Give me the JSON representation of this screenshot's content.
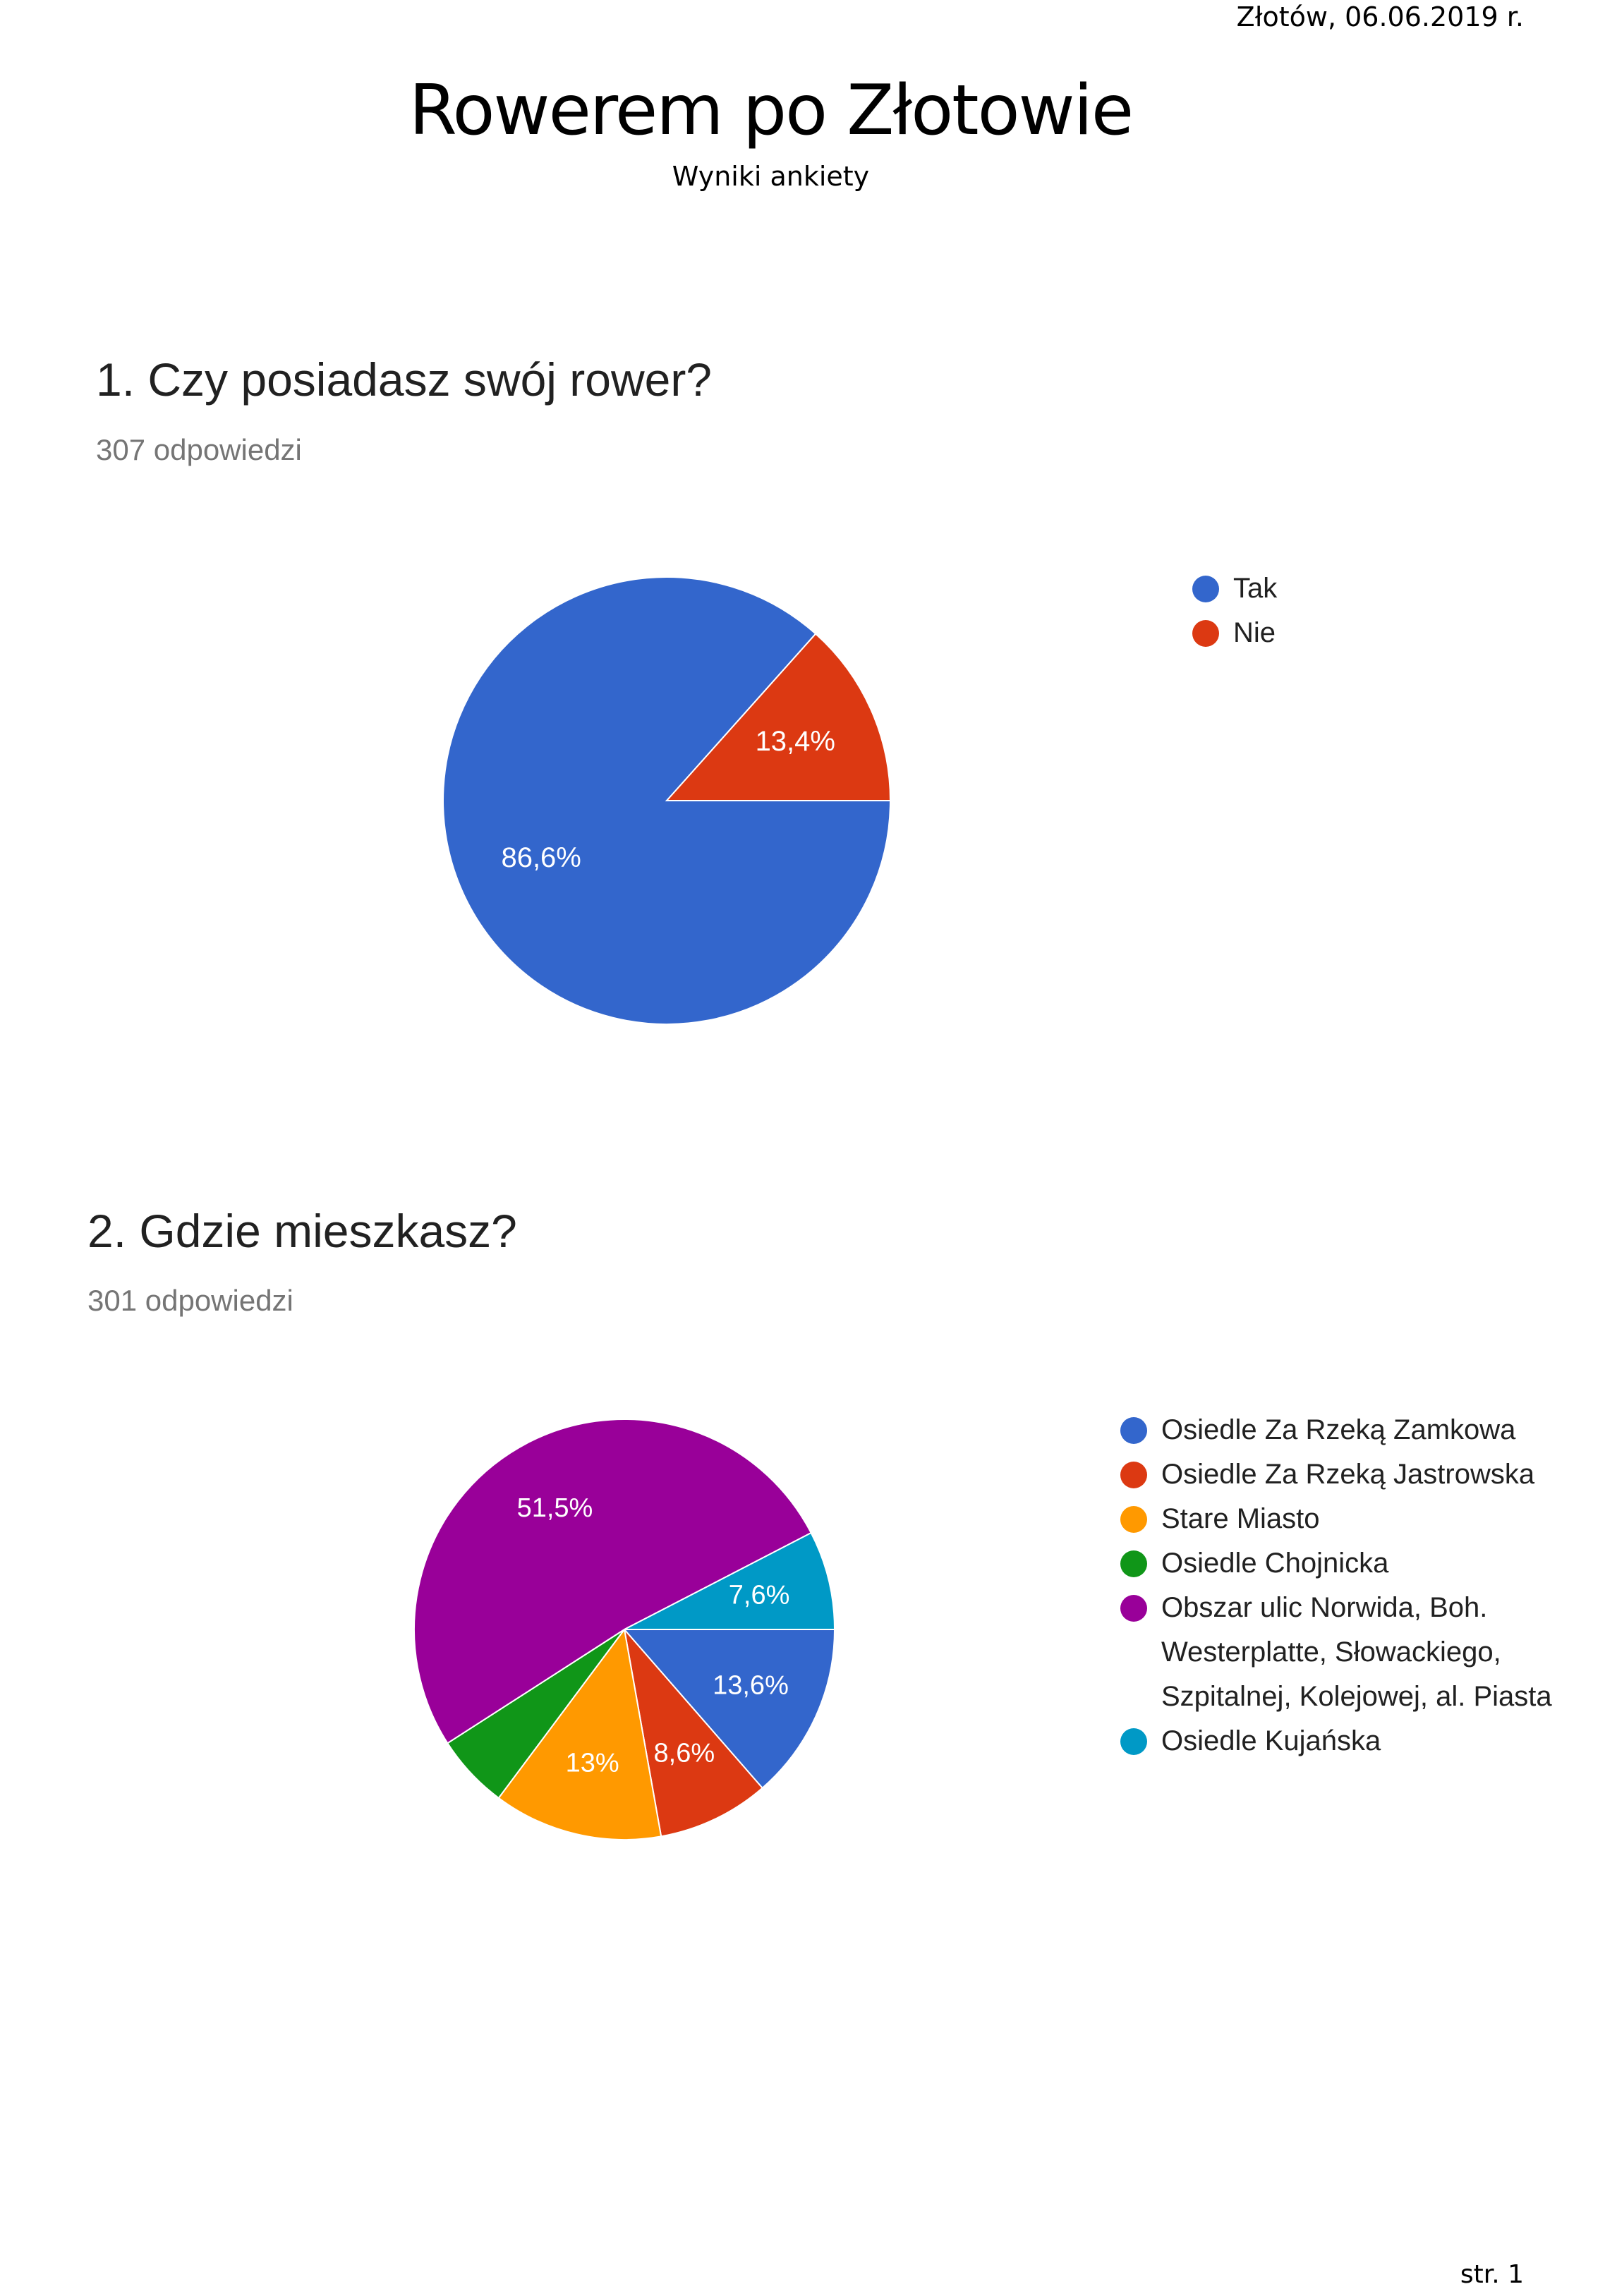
{
  "header": {
    "date_place": "Złotów, 06.06.2019 r.",
    "title": "Rowerem po Złotowie",
    "subtitle": "Wyniki ankiety"
  },
  "questions": [
    {
      "title": "1. Czy posiadasz swój rower?",
      "responses": "307 odpowiedzi"
    },
    {
      "title": "2. Gdzie mieszkasz?",
      "responses": "301 odpowiedzi"
    }
  ],
  "chart_data": [
    {
      "type": "pie",
      "categories": [
        "Tak",
        "Nie"
      ],
      "values": [
        86.6,
        13.4
      ],
      "labels": [
        "86,6%",
        "13,4%"
      ],
      "colors": [
        "#3366cc",
        "#dc3912"
      ],
      "legend": "right"
    },
    {
      "type": "pie",
      "categories": [
        "Osiedle Za Rzeką Zamkowa",
        "Osiedle Za Rzeką Jastrowska",
        "Stare Miasto",
        "Osiedle Chojnicka",
        "Obszar ulic Norwida, Boh. Westerplatte, Słowackiego, Szpitalnej, Kolejowej, al. Piasta",
        "Osiedle Kujańska"
      ],
      "legend_lines": [
        [
          "Osiedle Za Rzeką Zamkowa"
        ],
        [
          "Osiedle Za Rzeką Jastrowska"
        ],
        [
          "Stare Miasto"
        ],
        [
          "Osiedle Chojnicka"
        ],
        [
          "Obszar ulic Norwida, Boh.",
          "Westerplatte, Słowackiego,",
          "Szpitalnej, Kolejowej, al. Piasta"
        ],
        [
          "Osiedle Kujańska"
        ]
      ],
      "values": [
        13.6,
        8.6,
        13.0,
        5.7,
        51.5,
        7.6
      ],
      "labels": [
        "13,6%",
        "8,6%",
        "13%",
        "",
        "51,5%",
        "7,6%"
      ],
      "colors": [
        "#3366cc",
        "#dc3912",
        "#ff9900",
        "#109618",
        "#990099",
        "#0099c6"
      ],
      "legend": "right"
    }
  ],
  "footer": {
    "page": "str. 1"
  }
}
